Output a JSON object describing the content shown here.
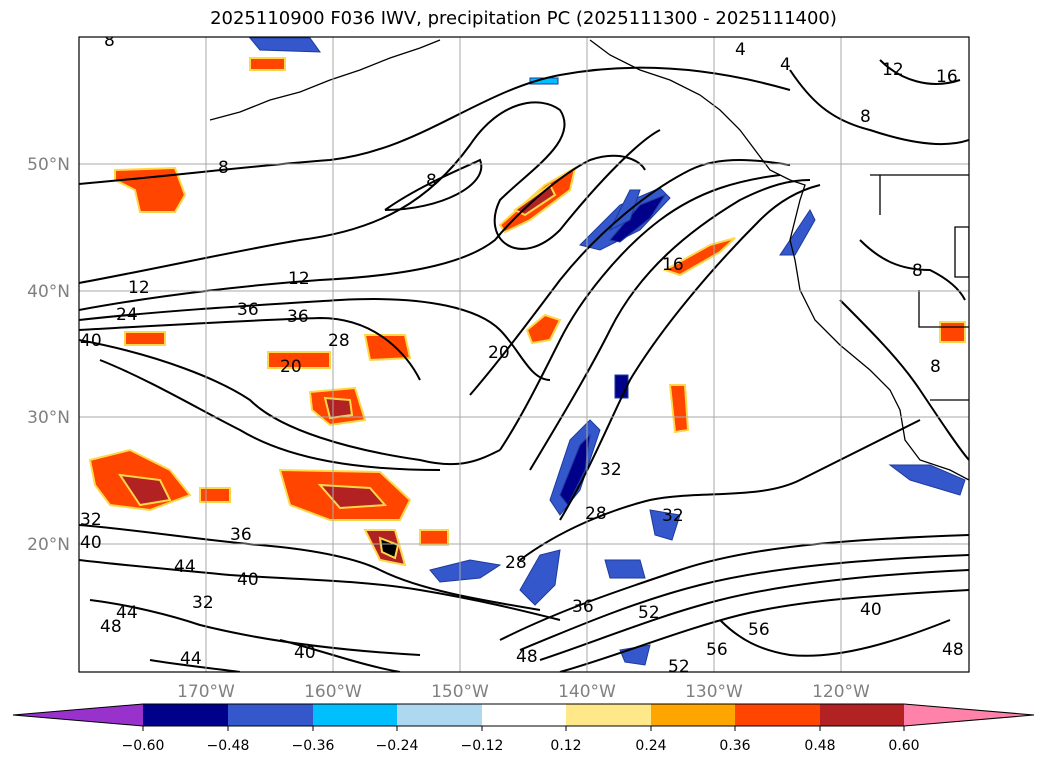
{
  "title": "2025110900 F036 IWV, precipitation PC (2025111300 - 2025111400)",
  "map": {
    "lat_labels": [
      "50°N",
      "40°N",
      "30°N",
      "20°N"
    ],
    "lon_labels": [
      "170°W",
      "160°W",
      "150°W",
      "140°W",
      "130°W",
      "120°W"
    ],
    "contour_labels": [
      "8",
      "8",
      "8",
      "12",
      "12",
      "12",
      "16",
      "16",
      "20",
      "20",
      "24",
      "28",
      "28",
      "28",
      "32",
      "32",
      "32",
      "32",
      "36",
      "36",
      "36",
      "36",
      "40",
      "40",
      "40",
      "40",
      "40",
      "44",
      "44",
      "44",
      "48",
      "48",
      "48",
      "52",
      "52",
      "56",
      "56",
      "4",
      "4",
      "8",
      "8",
      "8"
    ],
    "grid_color": "#a9a9a9",
    "coast_color": "#000000"
  },
  "colorbar": {
    "tick_labels": [
      "−0.60",
      "−0.48",
      "−0.36",
      "−0.24",
      "−0.12",
      "0.12",
      "0.24",
      "0.36",
      "0.48",
      "0.60"
    ],
    "colors": [
      "#9932cc",
      "#00008b",
      "#3458cc",
      "#00bfff",
      "#add8f0",
      "#ffffff",
      "#ffe88a",
      "#ffa500",
      "#ff4500",
      "#b22222",
      "#ff82ab"
    ]
  }
}
